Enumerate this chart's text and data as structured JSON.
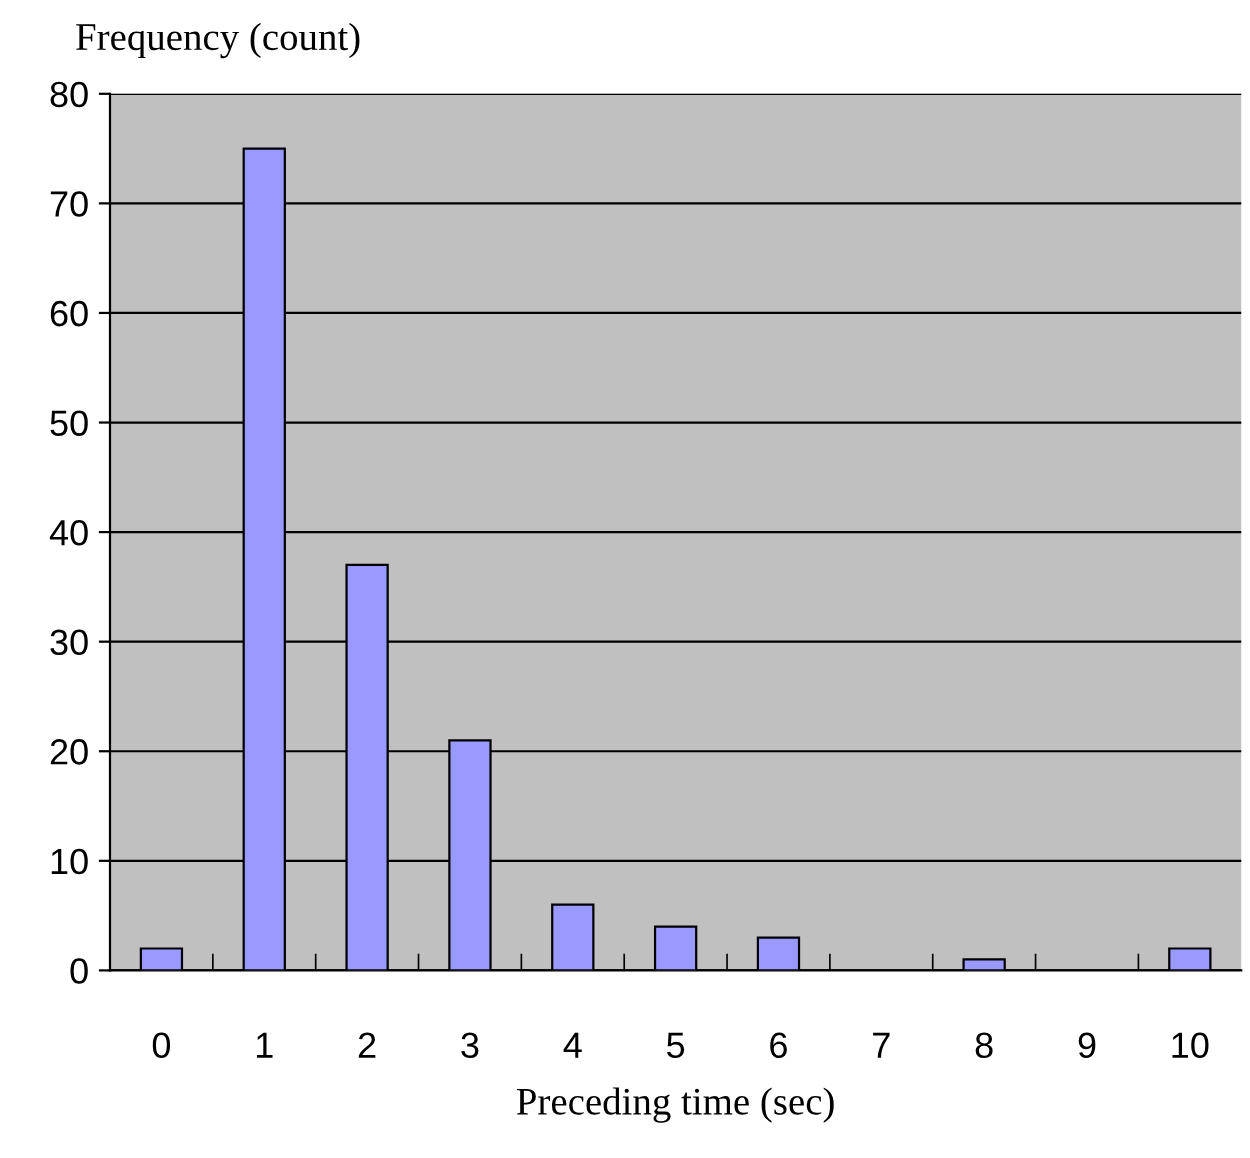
{
  "chart_data": {
    "type": "bar",
    "xlabel": "Preceding time (sec)",
    "ylabel": "Frequency (count)",
    "categories": [
      "0",
      "1",
      "2",
      "3",
      "4",
      "5",
      "6",
      "7",
      "8",
      "9",
      "10"
    ],
    "values": [
      2,
      75,
      37,
      21,
      6,
      4,
      3,
      0,
      1,
      0,
      2
    ],
    "color": "#9999ff",
    "ylim": [
      0,
      80
    ],
    "yticks": [
      0,
      10,
      20,
      30,
      40,
      50,
      60,
      70,
      80
    ],
    "grid": "y"
  }
}
